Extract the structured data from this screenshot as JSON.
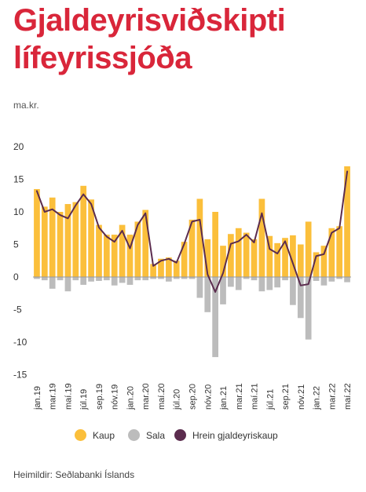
{
  "title_lines": [
    "Gjaldeyrisviðskipti",
    "lífeyrissjóða"
  ],
  "colors": {
    "kaup": "#fbbf3b",
    "sala": "#bcbcbc",
    "hrein": "#5b2c4e",
    "title": "#d9263a"
  },
  "chart_data": {
    "type": "bar",
    "unit_label": "ma.kr.",
    "ylim": [
      -15,
      20
    ],
    "yticks": [
      20,
      15,
      10,
      5,
      0,
      -5,
      -10,
      -15
    ],
    "ytick_labels": [
      "20",
      "15",
      "10",
      "5",
      "0",
      "-5",
      "-10",
      "-15"
    ],
    "x": [
      "jan.19",
      "feb.19",
      "mar.19",
      "apr.19",
      "maí.19",
      "jún.19",
      "júl.19",
      "ágú.19",
      "sep.19",
      "okt.19",
      "nóv.19",
      "des.19",
      "jan.20",
      "feb.20",
      "mar.20",
      "apr.20",
      "maí.20",
      "jún.20",
      "júl.20",
      "ágú.20",
      "sep.20",
      "okt.20",
      "nóv.20",
      "des.20",
      "jan.21",
      "feb.21",
      "mar.21",
      "apr.21",
      "maí.21",
      "jún.21",
      "júl.21",
      "ágú.21",
      "sep.21",
      "okt.21",
      "nóv.21",
      "des.21",
      "jan.22",
      "feb.22",
      "mar.22",
      "apr.22",
      "maí.22"
    ],
    "tick_labels": [
      "jan.19",
      "mar.19",
      "maí.19",
      "júl.19",
      "sep.19",
      "nóv.19",
      "jan.20",
      "mar.20",
      "maí.20",
      "júl.20",
      "sep.20",
      "nóv.20",
      "jan.21",
      "mar.21",
      "maí.21",
      "júl.21",
      "sep.21",
      "nóv.21",
      "jan.22",
      "mar.22",
      "maí.22"
    ],
    "series": [
      {
        "name": "Kaup",
        "type": "bar",
        "values": [
          13.5,
          10.8,
          12.2,
          10.0,
          11.2,
          11.5,
          14.0,
          11.9,
          8.0,
          6.5,
          6.5,
          8.0,
          6.5,
          8.5,
          10.3,
          2.0,
          2.8,
          3.0,
          2.5,
          5.4,
          8.8,
          12.0,
          5.8,
          10.0,
          4.8,
          6.6,
          7.5,
          6.8,
          5.8,
          12.0,
          6.3,
          5.2,
          6.0,
          6.4,
          5.0,
          8.5,
          3.8,
          4.8,
          7.5,
          7.8,
          17.0
        ]
      },
      {
        "name": "Sala",
        "type": "bar",
        "values": [
          -0.3,
          -0.5,
          -1.8,
          -0.5,
          -2.2,
          -0.5,
          -1.2,
          -0.7,
          -0.6,
          -0.5,
          -1.3,
          -0.9,
          -1.2,
          -0.5,
          -0.5,
          -0.3,
          -0.3,
          -0.7,
          -0.3,
          -0.3,
          -0.3,
          -3.2,
          -5.4,
          -12.3,
          -4.2,
          -1.5,
          -2.0,
          -0.3,
          -0.5,
          -2.2,
          -2.0,
          -1.6,
          -0.5,
          -4.3,
          -6.3,
          -9.6,
          -0.6,
          -1.3,
          -0.7,
          -0.3,
          -0.8
        ]
      },
      {
        "name": "Hrein gjaldeyriskaup",
        "type": "line",
        "values": [
          13.2,
          10.0,
          10.4,
          9.5,
          9.0,
          11.0,
          12.7,
          11.2,
          7.6,
          6.2,
          5.4,
          7.1,
          4.4,
          8.0,
          9.8,
          1.7,
          2.5,
          2.8,
          2.2,
          5.1,
          8.5,
          8.8,
          0.4,
          -2.3,
          0.6,
          5.1,
          5.5,
          6.5,
          5.3,
          9.8,
          4.3,
          3.6,
          5.5,
          2.1,
          -1.3,
          -1.1,
          3.2,
          3.5,
          6.8,
          7.5,
          16.2
        ]
      }
    ]
  },
  "legend": [
    {
      "label": "Kaup",
      "color_key": "kaup"
    },
    {
      "label": "Sala",
      "color_key": "sala"
    },
    {
      "label": "Hrein gjaldeyriskaup",
      "color_key": "hrein"
    }
  ],
  "source": "Heimildir: Seðlabanki Íslands"
}
